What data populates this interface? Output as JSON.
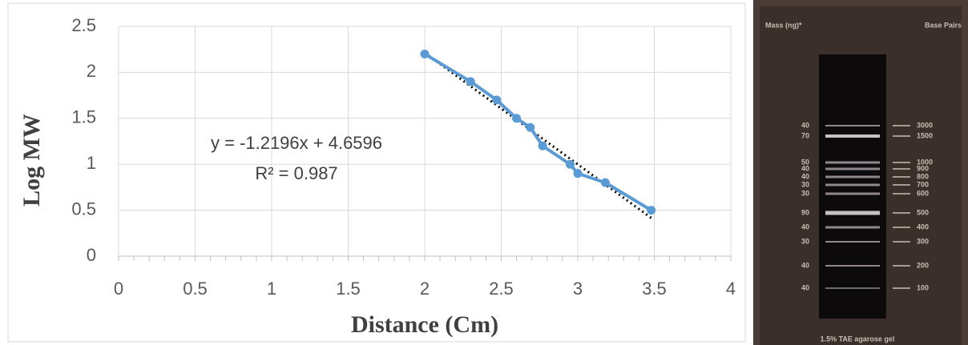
{
  "chart_data": {
    "type": "scatter",
    "xlabel": "Distance (Cm)",
    "ylabel": "Log MW",
    "annotations": [
      "y = -1.2196x + 4.6596",
      "R² = 0.987"
    ],
    "series": [
      {
        "color": "#5b9bd5",
        "x": [
          2.0,
          2.3,
          2.47,
          2.6,
          2.69,
          2.77,
          2.95,
          3.0,
          3.18,
          3.48
        ],
        "values": [
          2.2,
          1.9,
          1.7,
          1.5,
          1.4,
          1.2,
          1.0,
          0.9,
          0.8,
          0.5
        ]
      }
    ],
    "trendline": true,
    "xlim": [
      0,
      4
    ],
    "xticks": [
      0,
      0.5,
      1,
      1.5,
      2,
      2.5,
      3,
      3.5,
      4
    ],
    "ylim": [
      0,
      2.5
    ],
    "yticks": [
      0,
      0.5,
      1,
      1.5,
      2,
      2.5
    ],
    "grid": true
  },
  "gel": {
    "mass_header": "Mass (ng)*",
    "bp_header": "Base Pairs",
    "mass_labels": [
      "40",
      "70",
      "50",
      "40",
      "40",
      "30",
      "30",
      "90",
      "40",
      "30",
      "40",
      "40"
    ],
    "bp_labels": [
      "3000",
      "1500",
      "1000",
      "900",
      "800",
      "700",
      "600",
      "500",
      "400",
      "300",
      "200",
      "100"
    ],
    "caption": "1.5% TAE agarose gel"
  }
}
